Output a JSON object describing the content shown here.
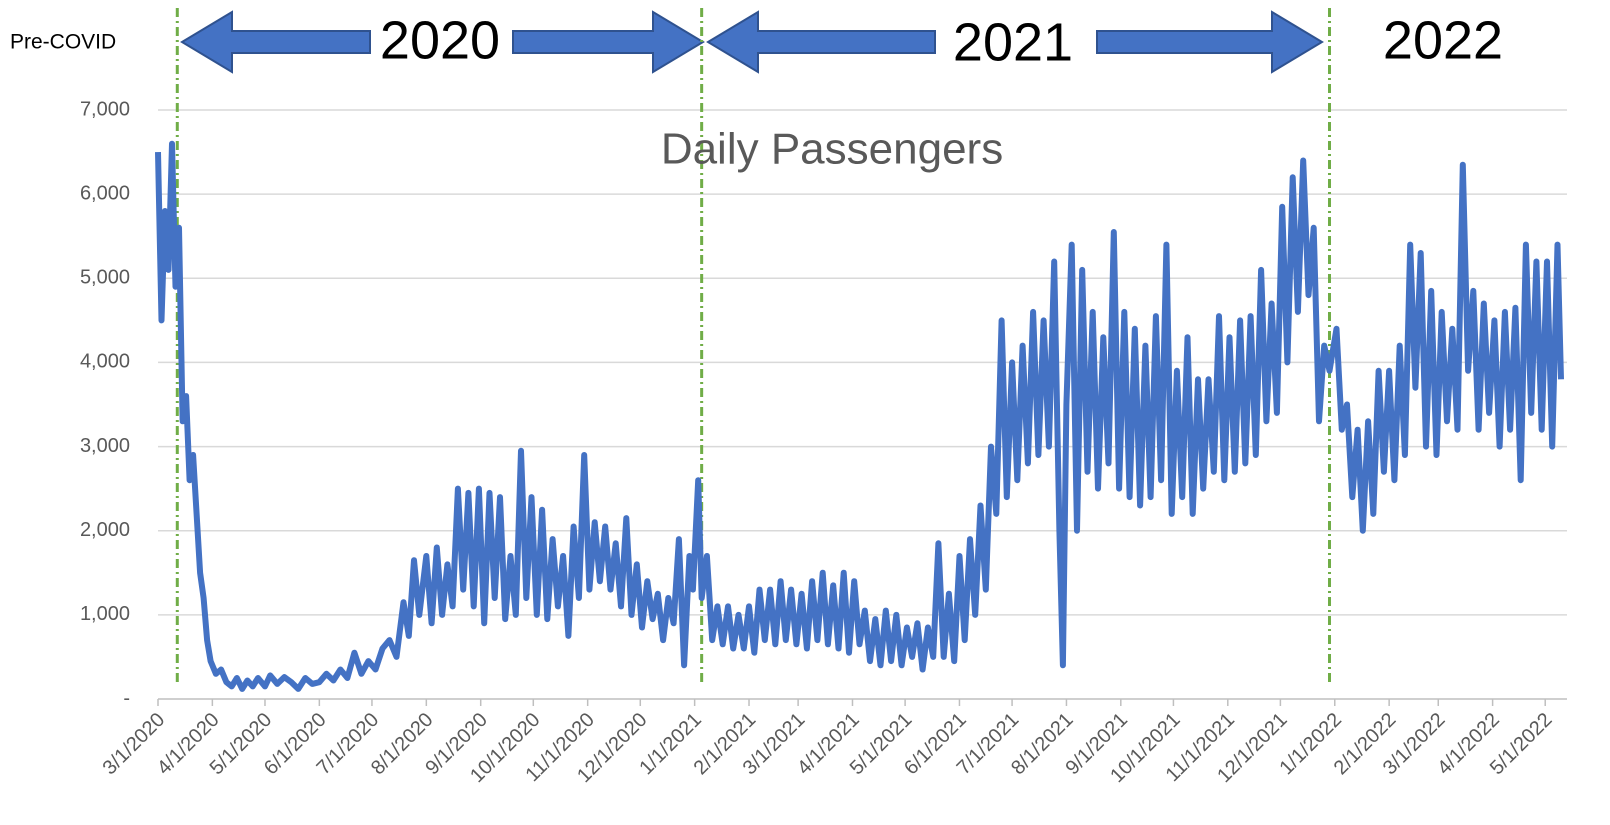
{
  "chart_data": {
    "type": "line",
    "title": "Daily Passengers",
    "annotations": [
      "Pre-COVID",
      "2020",
      "2021",
      "2022"
    ],
    "vlines": [
      "3/12/2020",
      "1/5/2021",
      "12/29/2021"
    ],
    "vline_color": "#70ad47",
    "color": "#4472c4",
    "grid": true,
    "ylim": [
      0,
      7000
    ],
    "yticks": [
      {
        "value": 0,
        "label": "-"
      },
      {
        "value": 1000,
        "label": "1,000"
      },
      {
        "value": 2000,
        "label": "2,000"
      },
      {
        "value": 3000,
        "label": "3,000"
      },
      {
        "value": 4000,
        "label": "4,000"
      },
      {
        "value": 5000,
        "label": "5,000"
      },
      {
        "value": 6000,
        "label": "6,000"
      },
      {
        "value": 7000,
        "label": "7,000"
      }
    ],
    "xlim": [
      "3/1/2020",
      "5/10/2022"
    ],
    "xticks": [
      "3/1/2020",
      "4/1/2020",
      "5/1/2020",
      "6/1/2020",
      "7/1/2020",
      "8/1/2020",
      "9/1/2020",
      "10/1/2020",
      "11/1/2020",
      "12/1/2020",
      "1/1/2021",
      "2/1/2021",
      "3/1/2021",
      "4/1/2021",
      "5/1/2021",
      "6/1/2021",
      "7/1/2021",
      "8/1/2021",
      "9/1/2021",
      "10/1/2021",
      "11/1/2021",
      "12/1/2021",
      "1/1/2022",
      "2/1/2022",
      "3/1/2022",
      "4/1/2022",
      "5/1/2022"
    ],
    "x": [
      "3/1/2020",
      "3/3/2020",
      "3/5/2020",
      "3/7/2020",
      "3/9/2020",
      "3/11/2020",
      "3/13/2020",
      "3/15/2020",
      "3/17/2020",
      "3/19/2020",
      "3/21/2020",
      "3/23/2020",
      "3/25/2020",
      "3/27/2020",
      "3/29/2020",
      "3/31/2020",
      "4/3/2020",
      "4/6/2020",
      "4/9/2020",
      "4/12/2020",
      "4/15/2020",
      "4/18/2020",
      "4/21/2020",
      "4/24/2020",
      "4/27/2020",
      "5/1/2020",
      "5/4/2020",
      "5/8/2020",
      "5/12/2020",
      "5/16/2020",
      "5/20/2020",
      "5/24/2020",
      "5/28/2020",
      "6/1/2020",
      "6/5/2020",
      "6/9/2020",
      "6/13/2020",
      "6/17/2020",
      "6/21/2020",
      "6/25/2020",
      "6/29/2020",
      "7/3/2020",
      "7/7/2020",
      "7/11/2020",
      "7/15/2020",
      "7/19/2020",
      "7/22/2020",
      "7/25/2020",
      "7/28/2020",
      "8/1/2020",
      "8/4/2020",
      "8/7/2020",
      "8/10/2020",
      "8/13/2020",
      "8/16/2020",
      "8/19/2020",
      "8/22/2020",
      "8/25/2020",
      "8/28/2020",
      "8/31/2020",
      "9/3/2020",
      "9/6/2020",
      "9/9/2020",
      "9/12/2020",
      "9/15/2020",
      "9/18/2020",
      "9/21/2020",
      "9/24/2020",
      "9/27/2020",
      "9/30/2020",
      "10/3/2020",
      "10/6/2020",
      "10/9/2020",
      "10/12/2020",
      "10/15/2020",
      "10/18/2020",
      "10/21/2020",
      "10/24/2020",
      "10/27/2020",
      "10/30/2020",
      "11/2/2020",
      "11/5/2020",
      "11/8/2020",
      "11/11/2020",
      "11/14/2020",
      "11/17/2020",
      "11/20/2020",
      "11/23/2020",
      "11/26/2020",
      "11/29/2020",
      "12/2/2020",
      "12/5/2020",
      "12/8/2020",
      "12/11/2020",
      "12/14/2020",
      "12/17/2020",
      "12/20/2020",
      "12/23/2020",
      "12/26/2020",
      "12/29/2020",
      "12/31/2020",
      "1/3/2021",
      "1/5/2021",
      "1/8/2021",
      "1/11/2021",
      "1/14/2021",
      "1/17/2021",
      "1/20/2021",
      "1/23/2021",
      "1/26/2021",
      "1/29/2021",
      "2/1/2021",
      "2/4/2021",
      "2/7/2021",
      "2/10/2021",
      "2/13/2021",
      "2/16/2021",
      "2/19/2021",
      "2/22/2021",
      "2/25/2021",
      "2/28/2021",
      "3/3/2021",
      "3/6/2021",
      "3/9/2021",
      "3/12/2021",
      "3/15/2021",
      "3/18/2021",
      "3/21/2021",
      "3/24/2021",
      "3/27/2021",
      "3/30/2021",
      "4/2/2021",
      "4/5/2021",
      "4/8/2021",
      "4/11/2021",
      "4/14/2021",
      "4/17/2021",
      "4/20/2021",
      "4/23/2021",
      "4/26/2021",
      "4/29/2021",
      "5/2/2021",
      "5/5/2021",
      "5/8/2021",
      "5/11/2021",
      "5/14/2021",
      "5/17/2021",
      "5/20/2021",
      "5/23/2021",
      "5/26/2021",
      "5/29/2021",
      "6/1/2021",
      "6/4/2021",
      "6/7/2021",
      "6/10/2021",
      "6/13/2021",
      "6/16/2021",
      "6/19/2021",
      "6/22/2021",
      "6/25/2021",
      "6/28/2021",
      "7/1/2021",
      "7/4/2021",
      "7/7/2021",
      "7/10/2021",
      "7/13/2021",
      "7/16/2021",
      "7/19/2021",
      "7/22/2021",
      "7/25/2021",
      "7/28/2021",
      "7/30/2021",
      "8/1/2021",
      "8/4/2021",
      "8/7/2021",
      "8/10/2021",
      "8/13/2021",
      "8/16/2021",
      "8/19/2021",
      "8/22/2021",
      "8/25/2021",
      "8/28/2021",
      "8/31/2021",
      "9/3/2021",
      "9/6/2021",
      "9/9/2021",
      "9/12/2021",
      "9/15/2021",
      "9/18/2021",
      "9/21/2021",
      "9/24/2021",
      "9/27/2021",
      "9/30/2021",
      "10/3/2021",
      "10/6/2021",
      "10/9/2021",
      "10/12/2021",
      "10/15/2021",
      "10/18/2021",
      "10/21/2021",
      "10/24/2021",
      "10/27/2021",
      "10/30/2021",
      "11/2/2021",
      "11/5/2021",
      "11/8/2021",
      "11/11/2021",
      "11/14/2021",
      "11/17/2021",
      "11/20/2021",
      "11/23/2021",
      "11/26/2021",
      "11/29/2021",
      "12/2/2021",
      "12/5/2021",
      "12/8/2021",
      "12/11/2021",
      "12/14/2021",
      "12/17/2021",
      "12/20/2021",
      "12/23/2021",
      "12/26/2021",
      "12/29/2021",
      "1/2/2022",
      "1/5/2022",
      "1/8/2022",
      "1/11/2022",
      "1/14/2022",
      "1/17/2022",
      "1/20/2022",
      "1/23/2022",
      "1/26/2022",
      "1/29/2022",
      "2/1/2022",
      "2/4/2022",
      "2/7/2022",
      "2/10/2022",
      "2/13/2022",
      "2/16/2022",
      "2/19/2022",
      "2/22/2022",
      "2/25/2022",
      "2/28/2022",
      "3/3/2022",
      "3/6/2022",
      "3/9/2022",
      "3/12/2022",
      "3/15/2022",
      "3/18/2022",
      "3/21/2022",
      "3/24/2022",
      "3/27/2022",
      "3/30/2022",
      "4/2/2022",
      "4/5/2022",
      "4/8/2022",
      "4/11/2022",
      "4/14/2022",
      "4/17/2022",
      "4/20/2022",
      "4/23/2022",
      "4/26/2022",
      "4/29/2022",
      "5/2/2022",
      "5/5/2022",
      "5/8/2022",
      "5/10/2022"
    ],
    "values": [
      6500,
      4500,
      5800,
      5100,
      6600,
      4900,
      5600,
      3300,
      3600,
      2600,
      2900,
      2200,
      1500,
      1200,
      700,
      450,
      300,
      350,
      200,
      150,
      250,
      120,
      220,
      150,
      250,
      150,
      280,
      180,
      260,
      200,
      120,
      250,
      180,
      200,
      300,
      220,
      350,
      250,
      550,
      300,
      450,
      350,
      600,
      700,
      500,
      1150,
      750,
      1650,
      1000,
      1700,
      900,
      1800,
      1000,
      1600,
      1100,
      2500,
      1300,
      2450,
      1100,
      2500,
      900,
      2450,
      1200,
      2400,
      950,
      1700,
      1000,
      2950,
      1200,
      2400,
      1000,
      2250,
      950,
      1900,
      1100,
      1700,
      750,
      2050,
      1200,
      2900,
      1300,
      2100,
      1400,
      2050,
      1300,
      1850,
      1100,
      2150,
      1000,
      1600,
      850,
      1400,
      950,
      1250,
      700,
      1200,
      900,
      1900,
      400,
      1700,
      1300,
      2600,
      1200,
      1700,
      700,
      1100,
      650,
      1100,
      600,
      1000,
      600,
      1100,
      550,
      1300,
      700,
      1300,
      650,
      1400,
      700,
      1300,
      650,
      1250,
      600,
      1400,
      700,
      1500,
      650,
      1350,
      600,
      1500,
      550,
      1400,
      650,
      1050,
      450,
      950,
      400,
      1050,
      450,
      1000,
      400,
      850,
      500,
      900,
      350,
      850,
      500,
      1850,
      500,
      1250,
      450,
      1700,
      700,
      1900,
      1000,
      2300,
      1300,
      3000,
      2200,
      4500,
      2400,
      4000,
      2600,
      4200,
      2800,
      4600,
      2900,
      4500,
      3000,
      5200,
      2000,
      400,
      3500,
      5400,
      2000,
      5100,
      2700,
      4600,
      2500,
      4300,
      2800,
      5550,
      2500,
      4600,
      2400,
      4400,
      2300,
      4200,
      2400,
      4550,
      2600,
      5400,
      2200,
      3900,
      2400,
      4300,
      2200,
      3800,
      2500,
      3800,
      2700,
      4550,
      2600,
      4300,
      2700,
      4500,
      2800,
      4550,
      2900,
      5100,
      3300,
      4700,
      3400,
      5850,
      4000,
      6200,
      4600,
      6400,
      4800,
      5600,
      3300,
      4200,
      3900,
      4400,
      3200,
      3500,
      2400,
      3200,
      2000,
      3300,
      2200,
      3900,
      2700,
      3900,
      2600,
      4200,
      2900,
      5400,
      3700,
      5300,
      3000,
      4850,
      2900,
      4600,
      3300,
      4400,
      3200,
      6350,
      3900,
      4850,
      3200,
      4700,
      3400,
      4500,
      3000,
      4600,
      3200,
      4650,
      2600,
      5400,
      3400,
      5200,
      3200,
      5200,
      3000,
      5400,
      3800
    ]
  }
}
